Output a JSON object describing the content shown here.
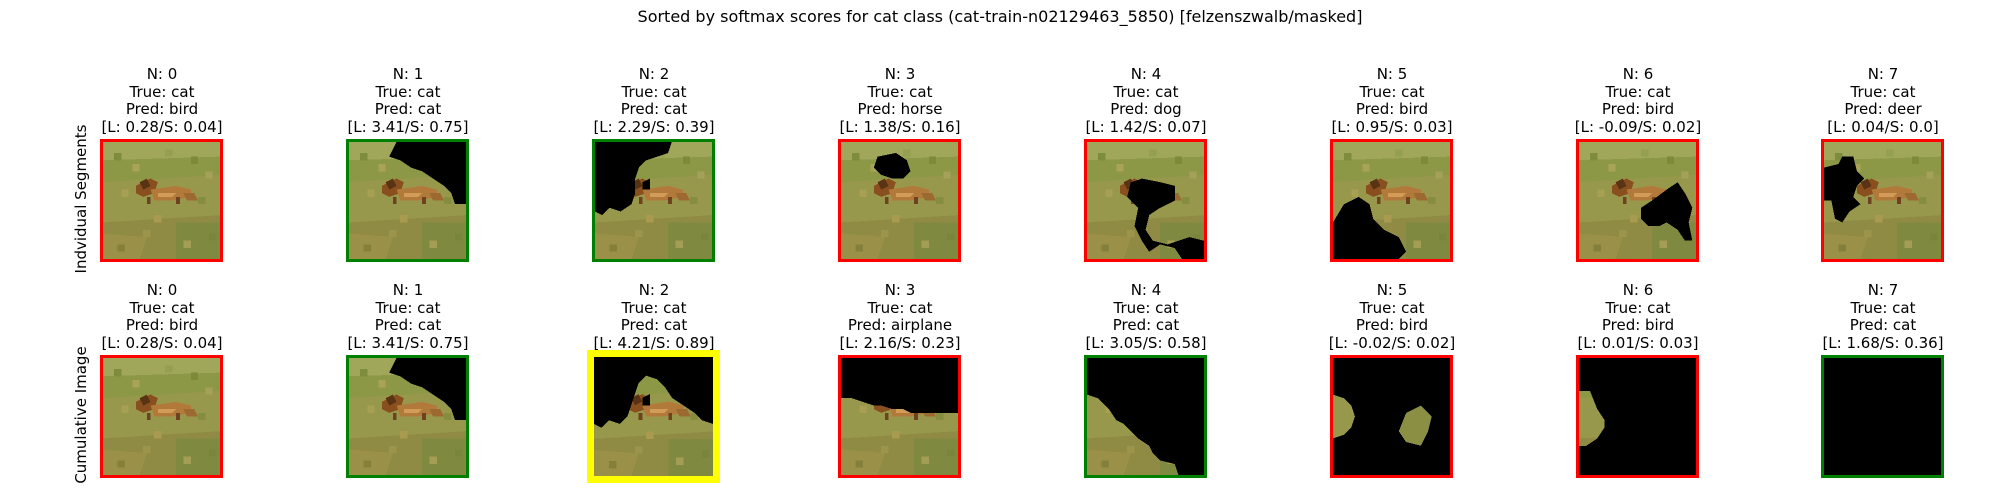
{
  "title": "Sorted by softmax scores for cat class (cat-train-n02129463_5850) [felzenszwalb/masked]",
  "row_labels": [
    "Indvidual Segments",
    "Cumulative Image"
  ],
  "colors": {
    "correct": "#008000",
    "incorrect": "#ff0000",
    "best": "#ffff00"
  },
  "rows": [
    {
      "name": "Indvidual Segments",
      "panels": [
        {
          "n": "N: 0",
          "true": "True: cat",
          "pred": "Pred: bird",
          "score": "[L: 0.28/S: 0.04]",
          "frame": "incorrect",
          "mask": "seg0"
        },
        {
          "n": "N: 1",
          "true": "True: cat",
          "pred": "Pred: cat",
          "score": "[L: 3.41/S: 0.75]",
          "frame": "correct",
          "mask": "seg1"
        },
        {
          "n": "N: 2",
          "true": "True: cat",
          "pred": "Pred: cat",
          "score": "[L: 2.29/S: 0.39]",
          "frame": "correct",
          "mask": "seg2"
        },
        {
          "n": "N: 3",
          "true": "True: cat",
          "pred": "Pred: horse",
          "score": "[L: 1.38/S: 0.16]",
          "frame": "incorrect",
          "mask": "seg3"
        },
        {
          "n": "N: 4",
          "true": "True: cat",
          "pred": "Pred: dog",
          "score": "[L: 1.42/S: 0.07]",
          "frame": "incorrect",
          "mask": "seg4"
        },
        {
          "n": "N: 5",
          "true": "True: cat",
          "pred": "Pred: bird",
          "score": "[L: 0.95/S: 0.03]",
          "frame": "incorrect",
          "mask": "seg5"
        },
        {
          "n": "N: 6",
          "true": "True: cat",
          "pred": "Pred: bird",
          "score": "[L: -0.09/S: 0.02]",
          "frame": "incorrect",
          "mask": "seg6"
        },
        {
          "n": "N: 7",
          "true": "True: cat",
          "pred": "Pred: deer",
          "score": "[L: 0.04/S: 0.0]",
          "frame": "incorrect",
          "mask": "seg7"
        }
      ]
    },
    {
      "name": "Cumulative Image",
      "panels": [
        {
          "n": "N: 0",
          "true": "True: cat",
          "pred": "Pred: bird",
          "score": "[L: 0.28/S: 0.04]",
          "frame": "incorrect",
          "mask": "cum0"
        },
        {
          "n": "N: 1",
          "true": "True: cat",
          "pred": "Pred: cat",
          "score": "[L: 3.41/S: 0.75]",
          "frame": "correct",
          "mask": "cum1"
        },
        {
          "n": "N: 2",
          "true": "True: cat",
          "pred": "Pred: cat",
          "score": "[L: 4.21/S: 0.89]",
          "frame": "best",
          "mask": "cum2"
        },
        {
          "n": "N: 3",
          "true": "True: cat",
          "pred": "Pred: airplane",
          "score": "[L: 2.16/S: 0.23]",
          "frame": "incorrect",
          "mask": "cum3"
        },
        {
          "n": "N: 4",
          "true": "True: cat",
          "pred": "Pred: cat",
          "score": "[L: 3.05/S: 0.58]",
          "frame": "correct",
          "mask": "cum4"
        },
        {
          "n": "N: 5",
          "true": "True: cat",
          "pred": "Pred: bird",
          "score": "[L: -0.02/S: 0.02]",
          "frame": "incorrect",
          "mask": "cum5"
        },
        {
          "n": "N: 6",
          "true": "True: cat",
          "pred": "Pred: bird",
          "score": "[L: 0.01/S: 0.03]",
          "frame": "incorrect",
          "mask": "cum6"
        },
        {
          "n": "N: 7",
          "true": "True: cat",
          "pred": "Pred: cat",
          "score": "[L: 1.68/S: 0.36]",
          "frame": "correct",
          "mask": "cum7"
        }
      ]
    }
  ],
  "chart_data": {
    "type": "image-grid",
    "title": "Sorted by softmax scores for cat class (cat-train-n02129463_5850) [felzenszwalb/masked]",
    "true_label": "cat",
    "rows": [
      {
        "name": "Indvidual Segments",
        "n": [
          0,
          1,
          2,
          3,
          4,
          5,
          6,
          7
        ],
        "pred": [
          "bird",
          "cat",
          "cat",
          "horse",
          "dog",
          "bird",
          "bird",
          "deer"
        ],
        "logit": [
          0.28,
          3.41,
          2.29,
          1.38,
          1.42,
          0.95,
          -0.09,
          0.04
        ],
        "softmax": [
          0.04,
          0.75,
          0.39,
          0.16,
          0.07,
          0.03,
          0.02,
          0.0
        ]
      },
      {
        "name": "Cumulative Image",
        "n": [
          0,
          1,
          2,
          3,
          4,
          5,
          6,
          7
        ],
        "pred": [
          "bird",
          "cat",
          "cat",
          "airplane",
          "cat",
          "bird",
          "bird",
          "cat"
        ],
        "logit": [
          0.28,
          3.41,
          4.21,
          2.16,
          3.05,
          -0.02,
          0.01,
          1.68
        ],
        "softmax": [
          0.04,
          0.75,
          0.89,
          0.23,
          0.58,
          0.02,
          0.03,
          0.36
        ]
      }
    ]
  }
}
